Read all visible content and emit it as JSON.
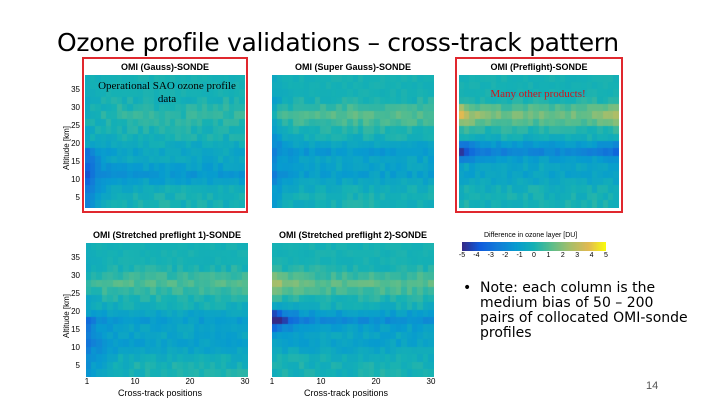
{
  "slide": {
    "title": "Ozone profile validations – cross-track pattern",
    "page_number": "14",
    "note": {
      "bullet": "•",
      "text": "Note: each column is the medium bias of 50 – 200 pairs of collocated OMI-sonde profiles"
    },
    "annotations": {
      "operational": "Operational SAO ozone profile data",
      "many_products": "Many other products!"
    },
    "highlight_color": "#e0282e"
  },
  "axes": {
    "ylabel": "Altitude [km]",
    "xlabel": "Cross-track positions",
    "yticks": [
      "35",
      "30",
      "25",
      "20",
      "15",
      "10",
      "5"
    ],
    "xticks": [
      "1",
      "10",
      "20",
      "30"
    ]
  },
  "colorbar": {
    "title": "Difference in ozone layer [DU]",
    "ticks": [
      "-5",
      "-4",
      "-3",
      "-2",
      "-1",
      "0",
      "1",
      "2",
      "3",
      "4",
      "5"
    ],
    "range": [
      -5,
      5
    ],
    "colormap": "parula"
  },
  "panels": [
    {
      "title": "OMI (Gauss)-SONDE",
      "variant": 0
    },
    {
      "title": "OMI (Super Gauss)-SONDE",
      "variant": 1
    },
    {
      "title": "OMI (Preflight)-SONDE",
      "variant": 2
    },
    {
      "title": "OMI (Stretched preflight 1)-SONDE",
      "variant": 3
    },
    {
      "title": "OMI (Stretched preflight 2)-SONDE",
      "variant": 4
    }
  ]
}
